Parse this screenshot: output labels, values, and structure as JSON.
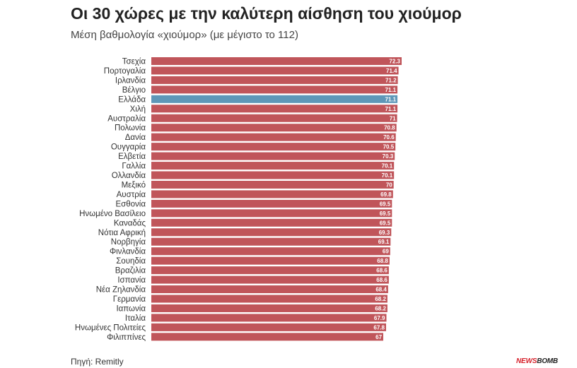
{
  "title": "Οι 30 χώρες με την καλύτερη αίσθηση του χιούμορ",
  "subtitle": "Μέση βαθμολογία «χιούμορ» (με μέγιστο το 112)",
  "source": "Πηγή: Remitly",
  "logo": {
    "part1": "NEWS",
    "part2": "BOMB"
  },
  "colors": {
    "bar": "#c0555a",
    "highlight": "#5e97b8"
  },
  "chart_data": {
    "type": "bar",
    "orientation": "horizontal",
    "categories": [
      "Τσεχία",
      "Πορτογαλία",
      "Ιρλανδία",
      "Βέλγιο",
      "Ελλάδα",
      "Χιλή",
      "Αυστραλία",
      "Πολωνία",
      "Δανία",
      "Ουγγαρία",
      "Ελβετία",
      "Γαλλία",
      "Ολλανδία",
      "Μεξικό",
      "Αυστρία",
      "Εσθονία",
      "Ηνωμένο Βασίλειο",
      "Καναδάς",
      "Νότια Αφρική",
      "Νορβηγία",
      "Φινλανδία",
      "Σουηδία",
      "Βραζιλία",
      "Ισπανία",
      "Νέα Ζηλανδία",
      "Γερμανία",
      "Ιαπωνία",
      "Ιταλία",
      "Ηνωμένες Πολιτείες",
      "Φιλιππίνες"
    ],
    "values": [
      72.3,
      71.4,
      71.2,
      71.1,
      71.1,
      71.1,
      71,
      70.8,
      70.6,
      70.5,
      70.3,
      70.1,
      70.1,
      70,
      69.8,
      69.5,
      69.5,
      69.5,
      69.3,
      69.1,
      69,
      68.8,
      68.6,
      68.6,
      68.4,
      68.2,
      68.2,
      67.9,
      67.8,
      67
    ],
    "value_labels": [
      "72.3",
      "71.4",
      "71.2",
      "71.1",
      "71.1",
      "71.1",
      "71",
      "70.8",
      "70.6",
      "70.5",
      "70.3",
      "70.1",
      "70.1",
      "70",
      "69.8",
      "69.5",
      "69.5",
      "69.5",
      "69.3",
      "69.1",
      "69",
      "68.8",
      "68.6",
      "68.6",
      "68.4",
      "68.2",
      "68.2",
      "67.9",
      "67.8",
      "67"
    ],
    "highlight": "Ελλάδα",
    "xlim": [
      0,
      72.3
    ],
    "grid": false,
    "legend": "none"
  }
}
